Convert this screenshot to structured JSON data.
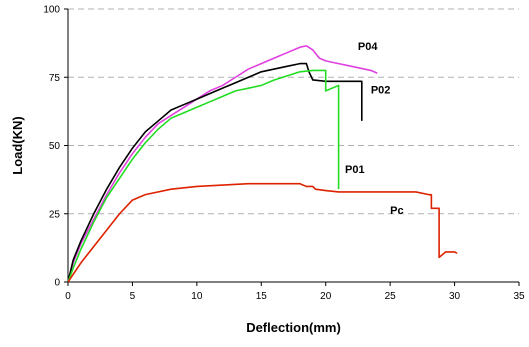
{
  "chart_data": {
    "type": "line",
    "title": "",
    "xlabel": "Deflection(mm)",
    "ylabel": "Load(KN)",
    "xlim": [
      0,
      35
    ],
    "ylim": [
      0,
      100
    ],
    "x_ticks": [
      0,
      5,
      10,
      15,
      20,
      25,
      30,
      35
    ],
    "y_ticks": [
      0,
      25,
      50,
      75,
      100
    ],
    "grid": "horizontal dashed",
    "legend": "none (labels placed next to curves)",
    "series": [
      {
        "name": "P04",
        "color": "#e040e0",
        "points": [
          [
            0,
            0
          ],
          [
            0.4,
            7
          ],
          [
            1,
            14
          ],
          [
            2,
            23
          ],
          [
            3,
            32
          ],
          [
            4,
            40
          ],
          [
            5,
            47
          ],
          [
            6,
            53
          ],
          [
            7,
            58
          ],
          [
            8,
            61
          ],
          [
            9,
            64
          ],
          [
            10,
            67
          ],
          [
            11,
            70
          ],
          [
            12,
            72
          ],
          [
            13,
            75
          ],
          [
            14,
            78
          ],
          [
            15,
            80
          ],
          [
            16,
            82
          ],
          [
            17,
            84
          ],
          [
            18,
            86
          ],
          [
            18.5,
            86.5
          ],
          [
            19,
            85
          ],
          [
            19.5,
            82
          ],
          [
            20,
            81
          ],
          [
            21,
            80
          ],
          [
            22,
            79
          ],
          [
            22.5,
            78.5
          ],
          [
            23,
            78
          ],
          [
            23.5,
            77.5
          ],
          [
            24,
            76.5
          ]
        ]
      },
      {
        "name": "P02",
        "color": "#000000",
        "points": [
          [
            0,
            0
          ],
          [
            0.4,
            8
          ],
          [
            1,
            15
          ],
          [
            2,
            25
          ],
          [
            3,
            34
          ],
          [
            4,
            42
          ],
          [
            5,
            49
          ],
          [
            6,
            55
          ],
          [
            7,
            59
          ],
          [
            8,
            63
          ],
          [
            9,
            65
          ],
          [
            10,
            67
          ],
          [
            11,
            69
          ],
          [
            12,
            71
          ],
          [
            13,
            73
          ],
          [
            14,
            75
          ],
          [
            15,
            77
          ],
          [
            16,
            78
          ],
          [
            17,
            79
          ],
          [
            18,
            80
          ],
          [
            18.5,
            80
          ],
          [
            18.7,
            77
          ],
          [
            19,
            74
          ],
          [
            20,
            73.5
          ],
          [
            21,
            73.5
          ],
          [
            22,
            73.5
          ],
          [
            22.8,
            73.5
          ],
          [
            22.8,
            59
          ]
        ]
      },
      {
        "name": "P01",
        "color": "#22dd22",
        "points": [
          [
            0,
            0
          ],
          [
            0.4,
            5
          ],
          [
            1,
            12
          ],
          [
            2,
            22
          ],
          [
            3,
            31
          ],
          [
            4,
            38
          ],
          [
            5,
            45
          ],
          [
            6,
            51
          ],
          [
            7,
            56
          ],
          [
            8,
            60
          ],
          [
            9,
            62
          ],
          [
            10,
            64
          ],
          [
            11,
            66
          ],
          [
            12,
            68
          ],
          [
            13,
            70
          ],
          [
            14,
            71
          ],
          [
            15,
            72
          ],
          [
            16,
            74
          ],
          [
            17,
            75.5
          ],
          [
            18,
            77
          ],
          [
            19,
            77.5
          ],
          [
            20,
            77.5
          ],
          [
            20,
            70
          ],
          [
            21,
            72
          ],
          [
            21,
            34
          ]
        ]
      },
      {
        "name": "Pc",
        "color": "#dd2200",
        "points": [
          [
            0,
            0
          ],
          [
            1,
            7
          ],
          [
            2,
            13
          ],
          [
            3,
            19
          ],
          [
            4,
            25
          ],
          [
            5,
            30
          ],
          [
            6,
            32
          ],
          [
            8,
            34
          ],
          [
            10,
            35
          ],
          [
            12,
            35.5
          ],
          [
            14,
            36
          ],
          [
            16,
            36
          ],
          [
            18,
            36
          ],
          [
            18.5,
            35
          ],
          [
            19,
            35
          ],
          [
            19.2,
            34
          ],
          [
            20,
            33.5
          ],
          [
            21,
            33
          ],
          [
            22,
            33
          ],
          [
            23,
            33
          ],
          [
            24,
            33
          ],
          [
            25,
            33
          ],
          [
            26,
            33
          ],
          [
            27,
            33
          ],
          [
            28,
            32
          ],
          [
            28.2,
            32
          ],
          [
            28.2,
            27
          ],
          [
            28.8,
            27
          ],
          [
            28.8,
            9
          ],
          [
            29.3,
            11
          ],
          [
            30,
            11
          ],
          [
            30.2,
            10.5
          ]
        ]
      }
    ],
    "annotations": [
      {
        "text": "P04",
        "x": 22.5,
        "y": 85
      },
      {
        "text": "P02",
        "x": 23.5,
        "y": 69
      },
      {
        "text": "P01",
        "x": 21.5,
        "y": 40
      },
      {
        "text": "Pc",
        "x": 25,
        "y": 25
      }
    ]
  }
}
